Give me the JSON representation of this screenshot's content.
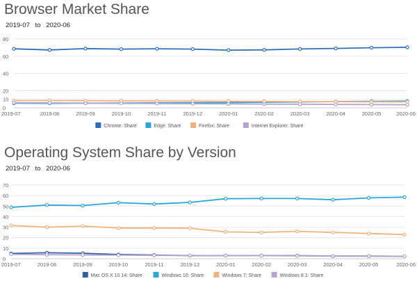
{
  "chart_data": [
    {
      "type": "line",
      "title": "Browser Market Share",
      "range": {
        "from": "2019-07",
        "to_word": "to",
        "to": "2020-06"
      },
      "categories": [
        "2019-07",
        "2019-08",
        "2019-09",
        "2019-10",
        "2019-11",
        "2019-12",
        "2020-01",
        "2020-02",
        "2020-03",
        "2020-04",
        "2020-05",
        "2020-06"
      ],
      "ylim": [
        0,
        80
      ],
      "yticks": [
        0,
        10,
        20,
        40,
        60,
        80
      ],
      "grid": true,
      "legend_position": "bottom",
      "series": [
        {
          "name": "Chrome: Share",
          "color": "#2f6fb5",
          "values": [
            68.5,
            67.2,
            68.8,
            68.2,
            68.6,
            68.2,
            67.0,
            67.3,
            68.4,
            69.0,
            69.8,
            70.3
          ]
        },
        {
          "name": "Edge: Share",
          "color": "#2aa6d8",
          "values": [
            5.3,
            5.2,
            5.4,
            5.5,
            5.7,
            5.9,
            6.1,
            6.5,
            6.8,
            7.3,
            7.6,
            7.8
          ]
        },
        {
          "name": "Firefox: Share",
          "color": "#f0b27a",
          "values": [
            8.4,
            8.5,
            8.3,
            8.1,
            7.9,
            7.8,
            7.6,
            7.4,
            7.2,
            7.1,
            7.0,
            6.9
          ]
        },
        {
          "name": "Internet Explorer: Share",
          "color": "#b5a3cf",
          "values": [
            6.0,
            5.7,
            5.4,
            5.2,
            5.0,
            4.8,
            4.5,
            4.3,
            4.1,
            3.9,
            3.7,
            3.5
          ]
        }
      ]
    },
    {
      "type": "line",
      "title": "Operating System Share by Version",
      "range": {
        "from": "2019-07",
        "to_word": "to",
        "to": "2020-06"
      },
      "categories": [
        "2019-07",
        "2019-08",
        "2019-09",
        "2019-10",
        "2019-11",
        "2019-12",
        "2020-01",
        "2020-02",
        "2020-03",
        "2020-04",
        "2020-05",
        "2020-06"
      ],
      "ylim": [
        0,
        70
      ],
      "yticks": [
        0,
        10,
        20,
        30,
        40,
        50,
        60,
        70
      ],
      "grid": true,
      "legend_position": "bottom",
      "series": [
        {
          "name": "Mac OS X 10.14: Share",
          "color": "#2f5fa5",
          "values": [
            5.0,
            5.7,
            5.2,
            4.0,
            3.5,
            3.0,
            3.0,
            3.0,
            3.0,
            2.5,
            2.5,
            2.3
          ]
        },
        {
          "name": "Windows 10: Share",
          "color": "#2aa6d8",
          "values": [
            48.8,
            51.0,
            50.5,
            53.2,
            52.0,
            53.5,
            57.0,
            57.2,
            57.2,
            56.0,
            57.8,
            58.5
          ]
        },
        {
          "name": "Windows 7: Share",
          "color": "#f0b27a",
          "values": [
            31.6,
            30.0,
            31.0,
            29.2,
            29.2,
            29.0,
            25.5,
            25.0,
            26.0,
            25.0,
            24.0,
            23.0
          ]
        },
        {
          "name": "Windows 8.1: Share",
          "color": "#b5a3cf",
          "values": [
            4.2,
            3.8,
            3.6,
            3.4,
            3.2,
            3.1,
            3.0,
            2.9,
            2.8,
            2.6,
            2.5,
            2.4
          ]
        }
      ]
    }
  ]
}
